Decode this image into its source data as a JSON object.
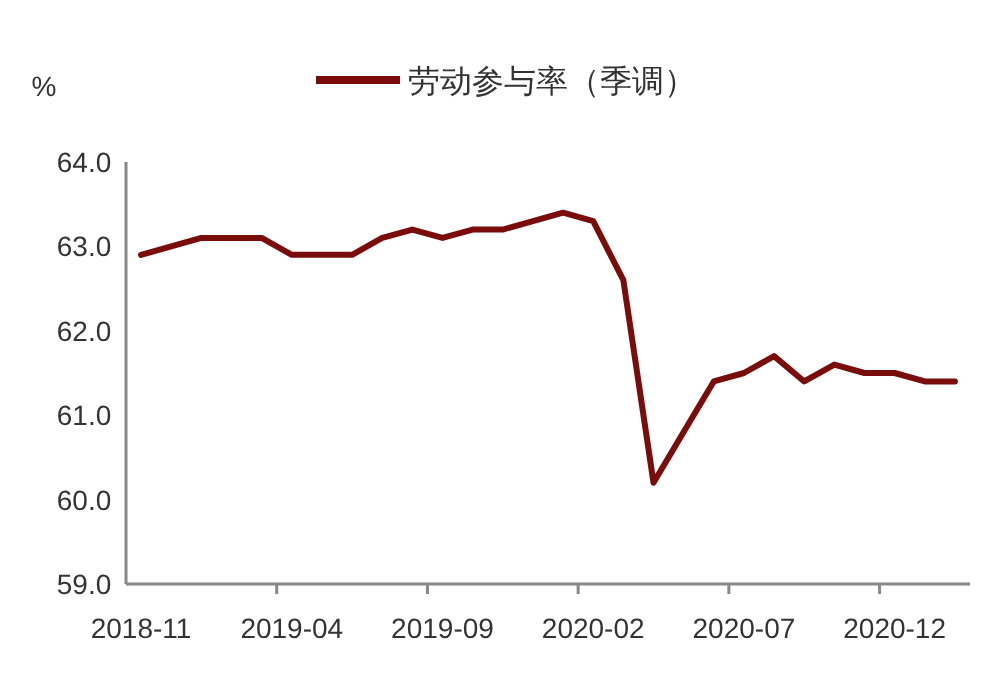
{
  "chart_data": {
    "type": "line",
    "ylabel": "%",
    "categories": [
      "2018-11",
      null,
      null,
      null,
      null,
      "2019-04",
      null,
      null,
      null,
      null,
      "2019-09",
      null,
      null,
      null,
      null,
      "2020-02",
      null,
      null,
      null,
      null,
      "2020-07",
      null,
      null,
      null,
      null,
      "2020-12",
      null,
      null
    ],
    "series": [
      {
        "name": "劳动参与率（季调）",
        "color": "#7a0c0c",
        "values": [
          62.9,
          63.0,
          63.1,
          63.1,
          63.1,
          62.9,
          62.9,
          62.9,
          63.1,
          63.2,
          63.1,
          63.2,
          63.2,
          63.3,
          63.4,
          63.3,
          62.6,
          60.2,
          60.8,
          61.4,
          61.5,
          61.7,
          61.4,
          61.6,
          61.5,
          61.5,
          61.4,
          61.4
        ]
      }
    ],
    "ylim": [
      59,
      64
    ],
    "yticks": [
      {
        "value": 59,
        "label": "59.0"
      },
      {
        "value": 60,
        "label": "60.0"
      },
      {
        "value": 61,
        "label": "61.0"
      },
      {
        "value": 62,
        "label": "62.0"
      },
      {
        "value": 63,
        "label": "63.0"
      },
      {
        "value": 64,
        "label": "64.0"
      }
    ],
    "legend": "top",
    "grid": false,
    "marker": "none",
    "line_style": "solid"
  }
}
